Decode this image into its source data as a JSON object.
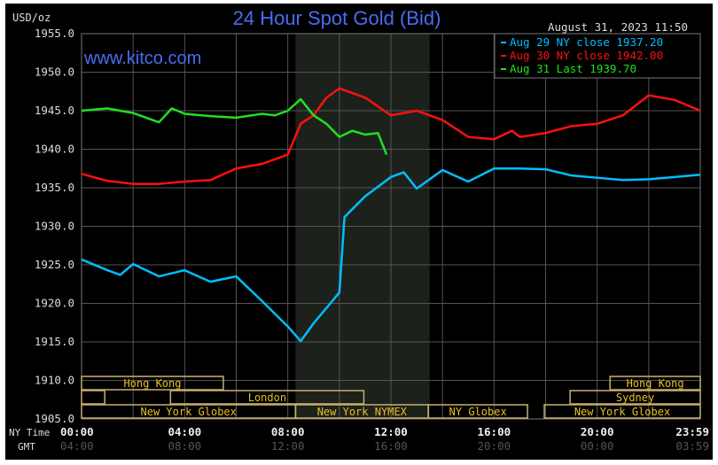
{
  "chart_data": {
    "type": "line",
    "title": "24 Hour Spot Gold (Bid)",
    "ylabel": "USD/oz",
    "timestamp": "August 31, 2023 11:50",
    "watermark": "www.kitco.com",
    "ylim": [
      1905,
      1955
    ],
    "yticks": [
      "1955.0",
      "1950.0",
      "1945.0",
      "1940.0",
      "1935.0",
      "1930.0",
      "1925.0",
      "1920.0",
      "1915.0",
      "1910.0",
      "1905.0"
    ],
    "xlabel_ny": "NY Time",
    "xlabel_gmt": "GMT",
    "xticks_ny": [
      "00:00",
      "04:00",
      "08:00",
      "12:00",
      "16:00",
      "20:00",
      "23:59"
    ],
    "xticks_gmt": [
      "04:00",
      "08:00",
      "12:00",
      "16:00",
      "20:00",
      "00:00",
      "03:59"
    ],
    "grid": true,
    "legend_position": "top-right",
    "colors": {
      "background": "#000000",
      "grid": "#555555",
      "shade": "#1c211c",
      "title": "#4a6cf0",
      "session": "#c8b070",
      "session_text": "#e8c020"
    },
    "series": [
      {
        "name": "Aug 29 NY close 1937.20",
        "color": "#00bfff",
        "x": [
          0,
          1,
          1.5,
          2,
          3,
          4,
          5,
          6,
          7,
          8,
          8.5,
          9,
          10,
          10.2,
          11,
          12,
          12.5,
          13,
          14,
          15,
          16,
          17,
          18,
          19,
          20,
          21,
          22,
          23,
          24
        ],
        "y": [
          1925.7,
          1924.3,
          1923.7,
          1925.1,
          1923.5,
          1924.3,
          1922.8,
          1923.5,
          1920.3,
          1917,
          1915.1,
          1917.4,
          1921.4,
          1931.2,
          1933.9,
          1936.4,
          1937,
          1934.9,
          1937.3,
          1935.8,
          1937.5,
          1937.5,
          1937.4,
          1936.6,
          1936.3,
          1936,
          1936.1,
          1936.4,
          1936.7
        ]
      },
      {
        "name": "Aug 30 NY close 1942.00",
        "color": "#ff1010",
        "x": [
          0,
          1,
          2,
          3,
          4,
          5,
          6,
          7,
          8,
          8.5,
          9,
          9.5,
          10,
          11,
          12,
          13,
          14,
          15,
          16,
          16.7,
          17,
          18,
          19,
          20,
          21,
          22,
          23,
          24
        ],
        "y": [
          1936.8,
          1935.9,
          1935.5,
          1935.5,
          1935.8,
          1936,
          1937.5,
          1938.1,
          1939.3,
          1943.3,
          1944.4,
          1946.7,
          1947.9,
          1946.7,
          1944.4,
          1945,
          1943.8,
          1941.6,
          1941.3,
          1942.4,
          1941.6,
          1942.1,
          1943,
          1943.3,
          1944.4,
          1947,
          1946.4,
          1945
        ]
      },
      {
        "name": "Aug 31 Last 1939.70",
        "color": "#20e020",
        "x": [
          0,
          1,
          2,
          3,
          3.5,
          4,
          5,
          6,
          7,
          7.5,
          8,
          8.5,
          9,
          9.5,
          10,
          10.5,
          11,
          11.5,
          11.83
        ],
        "y": [
          1945,
          1945.3,
          1944.7,
          1943.5,
          1945.3,
          1944.6,
          1944.3,
          1944.1,
          1944.6,
          1944.4,
          1945,
          1946.5,
          1944.4,
          1943.3,
          1941.6,
          1942.4,
          1941.9,
          1942.1,
          1939.3
        ]
      }
    ],
    "shaded_hours": [
      8.3,
      13.5
    ],
    "sessions": [
      {
        "label": "Hong Kong",
        "row": 0,
        "start": 0,
        "end": 5.5
      },
      {
        "label": "Hong Kong",
        "row": 0,
        "start": 20.5,
        "end": 24
      },
      {
        "label": "",
        "row": 1,
        "start": 0,
        "end": 0.9
      },
      {
        "label": "London",
        "row": 1,
        "start": 3.45,
        "end": 10.95
      },
      {
        "label": "Sydney",
        "row": 1,
        "start": 18.95,
        "end": 24
      },
      {
        "label": "New York Globex",
        "row": 2,
        "start": 0,
        "end": 8.3
      },
      {
        "label": "New York NYMEX",
        "row": 2,
        "start": 8.3,
        "end": 13.45
      },
      {
        "label": "NY Globex",
        "row": 2,
        "start": 13.45,
        "end": 17.3
      },
      {
        "label": "New York Globex",
        "row": 2,
        "start": 17.95,
        "end": 24
      }
    ]
  }
}
